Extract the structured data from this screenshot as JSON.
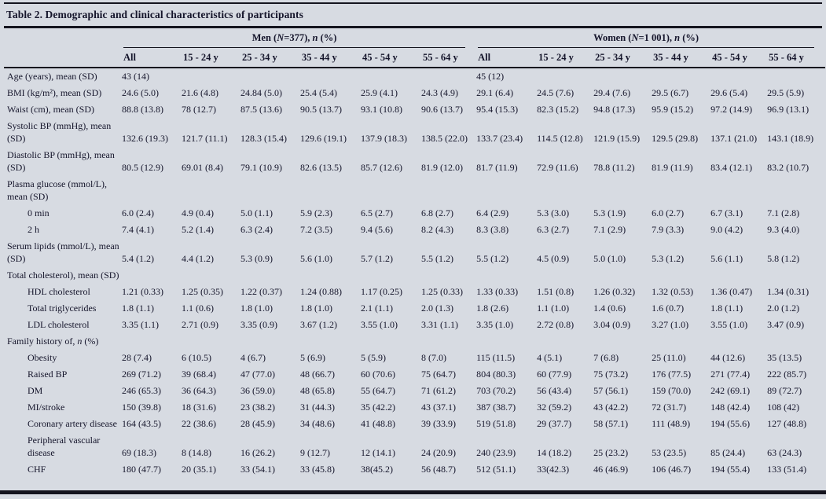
{
  "title": "Table 2. Demographic and clinical characteristics of participants",
  "groups": {
    "men": "Men (*N*=377), *n* (%)",
    "women": "Women (*N*=1 001), *n* (%)"
  },
  "age_columns": [
    "All",
    "15 - 24 y",
    "25 - 34 y",
    "35 - 44 y",
    "45 - 54 y",
    "55 - 64 y"
  ],
  "rows": [
    {
      "label": "Age (years), mean (SD)",
      "indent": false,
      "men": [
        "43 (14)",
        "",
        "",
        "",
        "",
        ""
      ],
      "women": [
        "45 (12)",
        "",
        "",
        "",
        "",
        ""
      ]
    },
    {
      "label": "BMI (kg/m²), mean (SD)",
      "indent": false,
      "men": [
        "24.6 (5.0)",
        "21.6 (4.8)",
        "24.84 (5.0)",
        "25.4 (5.4)",
        "25.9 (4.1)",
        "24.3 (4.9)"
      ],
      "women": [
        "29.1 (6.4)",
        "24.5 (7.6)",
        "29.4 (7.6)",
        "29.5 (6.7)",
        "29.6 (5.4)",
        "29.5 (5.9)"
      ]
    },
    {
      "label": "Waist (cm), mean (SD)",
      "indent": false,
      "men": [
        "88.8 (13.8)",
        "78 (12.7)",
        "87.5 (13.6)",
        "90.5 (13.7)",
        "93.1 (10.8)",
        "90.6 (13.7)"
      ],
      "women": [
        "95.4 (15.3)",
        "82.3 (15.2)",
        "94.8 (17.3)",
        "95.9 (15.2)",
        "97.2 (14.9)",
        "96.9 (13.1)"
      ]
    },
    {
      "label": "Systolic BP (mmHg), mean (SD)",
      "indent": false,
      "men": [
        "132.6 (19.3)",
        "121.7 (11.1)",
        "128.3 (15.4)",
        "129.6 (19.1)",
        "137.9 (18.3)",
        "138.5 (22.0)"
      ],
      "women": [
        "133.7 (23.4)",
        "114.5 (12.8)",
        "121.9 (15.9)",
        "129.5 (29.8)",
        "137.1 (21.0)",
        "143.1 (18.9)"
      ]
    },
    {
      "label": "Diastolic BP (mmHg), mean (SD)",
      "indent": false,
      "men": [
        "80.5 (12.9)",
        "69.01 (8.4)",
        "79.1 (10.9)",
        "82.6 (13.5)",
        "85.7 (12.6)",
        "81.9 (12.0)"
      ],
      "women": [
        "81.7 (11.9)",
        "72.9 (11.6)",
        "78.8 (11.2)",
        "81.9 (11.9)",
        "83.4 (12.1)",
        "83.2 (10.7)"
      ]
    },
    {
      "label": "Plasma glucose (mmol/L), mean (SD)",
      "indent": false,
      "men": [
        "",
        "",
        "",
        "",
        "",
        ""
      ],
      "women": [
        "",
        "",
        "",
        "",
        "",
        ""
      ]
    },
    {
      "label": "0 min",
      "indent": true,
      "men": [
        "6.0 (2.4)",
        "4.9 (0.4)",
        "5.0 (1.1)",
        "5.9 (2.3)",
        "6.5 (2.7)",
        "6.8 (2.7)"
      ],
      "women": [
        "6.4 (2.9)",
        "5.3 (3.0)",
        "5.3 (1.9)",
        "6.0 (2.7)",
        "6.7 (3.1)",
        "7.1 (2.8)"
      ]
    },
    {
      "label": "2 h",
      "indent": true,
      "men": [
        "7.4 (4.1)",
        "5.2 (1.4)",
        "6.3 (2.4)",
        "7.2 (3.5)",
        "9.4 (5.6)",
        "8.2 (4.3)"
      ],
      "women": [
        "8.3 (3.8)",
        "6.3 (2.7)",
        "7.1 (2.9)",
        "7.9 (3.3)",
        "9.0 (4.2)",
        "9.3 (4.0)"
      ]
    },
    {
      "label": "Serum lipids (mmol/L), mean (SD)",
      "indent": false,
      "men": [
        "5.4 (1.2)",
        "4.4 (1.2)",
        "5.3 (0.9)",
        "5.6 (1.0)",
        "5.7 (1.2)",
        "5.5 (1.2)"
      ],
      "women": [
        "5.5 (1.2)",
        "4.5 (0.9)",
        "5.0 (1.0)",
        "5.3 (1.2)",
        "5.6 (1.1)",
        "5.8 (1.2)"
      ]
    },
    {
      "label": "Total cholesterol), mean (SD)",
      "indent": false,
      "men": [
        "",
        "",
        "",
        "",
        "",
        ""
      ],
      "women": [
        "",
        "",
        "",
        "",
        "",
        ""
      ]
    },
    {
      "label": "HDL cholesterol",
      "indent": true,
      "men": [
        "1.21 (0.33)",
        "1.25 (0.35)",
        "1.22 (0.37)",
        "1.24 (0.88)",
        "1.17 (0.25)",
        "1.25 (0.33)"
      ],
      "women": [
        "1.33 (0.33)",
        "1.51 (0.8)",
        "1.26 (0.32)",
        "1.32 (0.53)",
        "1.36 (0.47)",
        "1.34 (0.31)"
      ]
    },
    {
      "label": "Total triglycerides",
      "indent": true,
      "men": [
        "1.8 (1.1)",
        "1.1 (0.6)",
        "1.8 (1.0)",
        "1.8 (1.0)",
        "2.1 (1.1)",
        "2.0 (1.3)"
      ],
      "women": [
        "1.8 (2.6)",
        "1.1 (1.0)",
        "1.4 (0.6)",
        "1.6 (0.7)",
        "1.8 (1.1)",
        "2.0 (1.2)"
      ]
    },
    {
      "label": "LDL cholesterol",
      "indent": true,
      "men": [
        "3.35 (1.1)",
        "2.71 (0.9)",
        "3.35 (0.9)",
        "3.67 (1.2)",
        "3.55 (1.0)",
        "3.31 (1.1)"
      ],
      "women": [
        "3.35 (1.0)",
        "2.72 (0.8)",
        "3.04 (0.9)",
        "3.27 (1.0)",
        "3.55 (1.0)",
        "3.47 (0.9)"
      ]
    },
    {
      "label": "Family history of, *n* (%)",
      "indent": false,
      "men": [
        "",
        "",
        "",
        "",
        "",
        ""
      ],
      "women": [
        "",
        "",
        "",
        "",
        "",
        ""
      ]
    },
    {
      "label": "Obesity",
      "indent": true,
      "men": [
        "28 (7.4)",
        "6 (10.5)",
        "4 (6.7)",
        "5 (6.9)",
        "5 (5.9)",
        "8 (7.0)"
      ],
      "women": [
        "115 (11.5)",
        "4 (5.1)",
        "7 (6.8)",
        "25 (11.0)",
        "44 (12.6)",
        "35 (13.5)"
      ]
    },
    {
      "label": "Raised BP",
      "indent": true,
      "men": [
        "269 (71.2)",
        "39 (68.4)",
        "47 (77.0)",
        "48 (66.7)",
        "60 (70.6)",
        "75 (64.7)"
      ],
      "women": [
        "804 (80.3)",
        "60 (77.9)",
        "75 (73.2)",
        "176 (77.5)",
        "271 (77.4)",
        "222 (85.7)"
      ]
    },
    {
      "label": "DM",
      "indent": true,
      "men": [
        "246 (65.3)",
        "36 (64.3)",
        "36 (59.0)",
        "48 (65.8)",
        "55 (64.7)",
        "71 (61.2)"
      ],
      "women": [
        "703 (70.2)",
        "56 (43.4)",
        "57 (56.1)",
        "159 (70.0)",
        "242 (69.1)",
        "89 (72.7)"
      ]
    },
    {
      "label": "MI/stroke",
      "indent": true,
      "men": [
        "150 (39.8)",
        "18 (31.6)",
        "23 (38.2)",
        "31 (44.3)",
        "35 (42.2)",
        "43 (37.1)"
      ],
      "women": [
        "387 (38.7)",
        "32 (59.2)",
        "43 (42.2)",
        "72 (31.7)",
        "148 (42.4)",
        "108 (42)"
      ]
    },
    {
      "label": "Coronary artery disease",
      "indent": true,
      "men": [
        "164 (43.5)",
        "22 (38.6)",
        "28 (45.9)",
        "34 (48.6)",
        "41 (48.8)",
        "39 (33.9)"
      ],
      "women": [
        "519 (51.8)",
        "29 (37.7)",
        "58 (57.1)",
        "111 (48.9)",
        "194 (55.6)",
        "127 (48.8)"
      ]
    },
    {
      "label": "Peripheral vascular disease",
      "indent": true,
      "men": [
        "69 (18.3)",
        "8 (14.8)",
        "16 (26.2)",
        "9 (12.7)",
        "12 (14.1)",
        "24 (20.9)"
      ],
      "women": [
        "240 (23.9)",
        "14 (18.2)",
        "25 (23.2)",
        "53 (23.5)",
        "85 (24.4)",
        "63 (24.3)"
      ]
    },
    {
      "label": "CHF",
      "indent": true,
      "men": [
        "180 (47.7)",
        "20 (35.1)",
        "33 (54.1)",
        "33 (45.8)",
        "38(45.2)",
        "56 (48.7)"
      ],
      "women": [
        "512 (51.1)",
        "33(42.3)",
        "46 (46.9)",
        "106 (46.7)",
        "194 (55.4)",
        "133 (51.4)"
      ]
    }
  ],
  "colors": {
    "background": "#d7dbe2",
    "text": "#15152b",
    "rule": "#14141e"
  }
}
